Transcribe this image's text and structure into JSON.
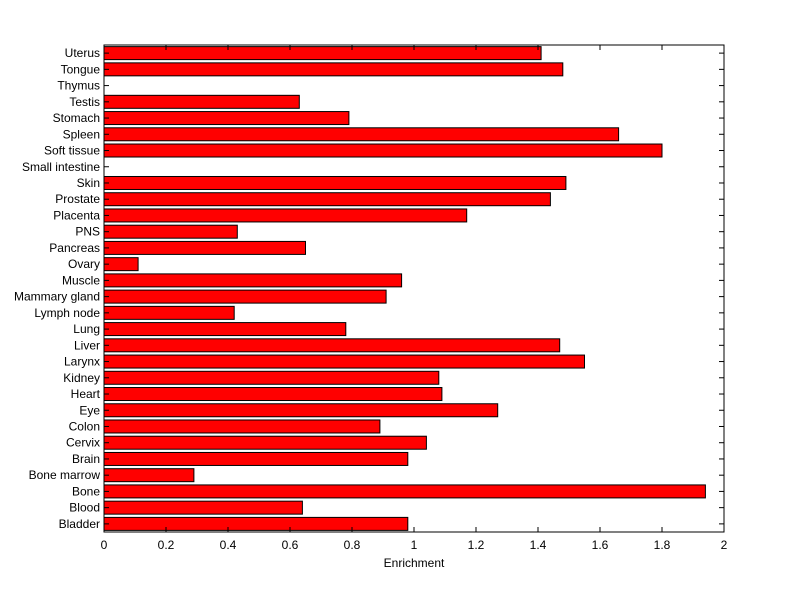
{
  "chart_data": {
    "type": "bar",
    "orientation": "horizontal",
    "title": "",
    "xlabel": "Enrichment",
    "ylabel": "",
    "xlim": [
      0,
      2
    ],
    "xticks": [
      0,
      0.2,
      0.4,
      0.6,
      0.8,
      1,
      1.2,
      1.4,
      1.6,
      1.8,
      2
    ],
    "xtick_labels": [
      "0",
      "0.2",
      "0.4",
      "0.6",
      "0.8",
      "1",
      "1.2",
      "1.4",
      "1.6",
      "1.8",
      "2"
    ],
    "grid": false,
    "legend": "none",
    "bar_color": "#ff0000",
    "edge_color": "#000000",
    "categories": [
      "Bladder",
      "Blood",
      "Bone",
      "Bone marrow",
      "Brain",
      "Cervix",
      "Colon",
      "Eye",
      "Heart",
      "Kidney",
      "Larynx",
      "Liver",
      "Lung",
      "Lymph node",
      "Mammary gland",
      "Muscle",
      "Ovary",
      "Pancreas",
      "PNS",
      "Placenta",
      "Prostate",
      "Skin",
      "Small intestine",
      "Soft tissue",
      "Spleen",
      "Stomach",
      "Testis",
      "Thymus",
      "Tongue",
      "Uterus"
    ],
    "values": [
      0.98,
      0.64,
      1.94,
      0.29,
      0.98,
      1.04,
      0.89,
      1.27,
      1.09,
      1.08,
      1.55,
      1.47,
      0.78,
      0.42,
      0.91,
      0.96,
      0.11,
      0.65,
      0.43,
      1.17,
      1.44,
      1.49,
      0,
      1.8,
      1.66,
      0.79,
      0.63,
      0,
      1.48,
      1.41
    ]
  }
}
